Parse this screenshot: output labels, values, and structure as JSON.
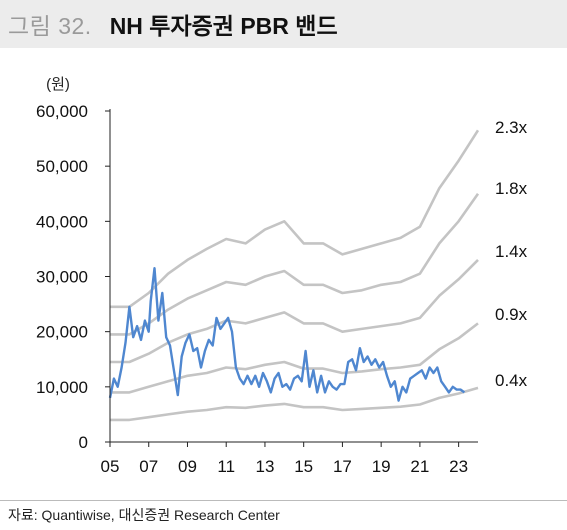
{
  "figure": {
    "label": "그림 32.",
    "title": "NH 투자증권 PBR 밴드"
  },
  "source": "자료: Quantiwise, 대신증권 Research Center",
  "colors": {
    "band": "#c4c4c4",
    "price": "#4f87d0",
    "axis": "#222222"
  },
  "chart_data": {
    "type": "line",
    "title": "NH 투자증권 PBR 밴드",
    "ylabel": "(원)",
    "xlabel": "",
    "ylim": [
      0,
      60000
    ],
    "xlim": [
      2005.0,
      2024.0
    ],
    "yticks": [
      0,
      10000,
      20000,
      30000,
      40000,
      50000,
      60000
    ],
    "ytick_labels": [
      "0",
      "10,000",
      "20,000",
      "30,000",
      "40,000",
      "50,000",
      "60,000"
    ],
    "xticks": [
      2005,
      2007,
      2009,
      2011,
      2013,
      2015,
      2017,
      2019,
      2021,
      2023
    ],
    "xtick_labels": [
      "05",
      "07",
      "09",
      "11",
      "13",
      "15",
      "17",
      "19",
      "21",
      "23"
    ],
    "band_labels": [
      "2.3x",
      "1.8x",
      "1.4x",
      "0.9x",
      "0.4x"
    ],
    "bands": [
      {
        "name": "2.3x",
        "x": [
          2005.0,
          2006.0,
          2007.0,
          2008.0,
          2009.0,
          2010.0,
          2011.0,
          2012.0,
          2013.0,
          2014.0,
          2015.0,
          2016.0,
          2017.0,
          2018.0,
          2019.0,
          2020.0,
          2021.0,
          2022.0,
          2023.0,
          2024.0
        ],
        "values": [
          24500,
          24500,
          27000,
          30500,
          33000,
          35000,
          36800,
          36000,
          38500,
          40000,
          36000,
          36000,
          34000,
          35000,
          36000,
          37000,
          39000,
          46000,
          51000,
          56500
        ]
      },
      {
        "name": "1.8x",
        "x": [
          2005.0,
          2006.0,
          2007.0,
          2008.0,
          2009.0,
          2010.0,
          2011.0,
          2012.0,
          2013.0,
          2014.0,
          2015.0,
          2016.0,
          2017.0,
          2018.0,
          2019.0,
          2020.0,
          2021.0,
          2022.0,
          2023.0,
          2024.0
        ],
        "values": [
          19500,
          19500,
          21500,
          24000,
          26000,
          27500,
          29000,
          28500,
          30000,
          31000,
          28500,
          28500,
          27000,
          27500,
          28500,
          29000,
          30500,
          36000,
          40000,
          45000
        ]
      },
      {
        "name": "1.4x",
        "x": [
          2005.0,
          2006.0,
          2007.0,
          2008.0,
          2009.0,
          2010.0,
          2011.0,
          2012.0,
          2013.0,
          2014.0,
          2015.0,
          2016.0,
          2017.0,
          2018.0,
          2019.0,
          2020.0,
          2021.0,
          2022.0,
          2023.0,
          2024.0
        ],
        "values": [
          14500,
          14500,
          16000,
          18000,
          19500,
          20500,
          22000,
          21500,
          22500,
          23500,
          21500,
          21500,
          20000,
          20500,
          21000,
          21500,
          22500,
          26500,
          29500,
          33000
        ]
      },
      {
        "name": "0.9x",
        "x": [
          2005.0,
          2006.0,
          2007.0,
          2008.0,
          2009.0,
          2010.0,
          2011.0,
          2012.0,
          2013.0,
          2014.0,
          2015.0,
          2016.0,
          2017.0,
          2018.0,
          2019.0,
          2020.0,
          2021.0,
          2022.0,
          2023.0,
          2024.0
        ],
        "values": [
          9000,
          9000,
          10000,
          11000,
          12000,
          12500,
          13500,
          13200,
          14000,
          14500,
          13300,
          13300,
          12500,
          12800,
          13200,
          13500,
          14000,
          16800,
          18800,
          21500
        ]
      },
      {
        "name": "0.4x",
        "x": [
          2005.0,
          2006.0,
          2007.0,
          2008.0,
          2009.0,
          2010.0,
          2011.0,
          2012.0,
          2013.0,
          2014.0,
          2015.0,
          2016.0,
          2017.0,
          2018.0,
          2019.0,
          2020.0,
          2021.0,
          2022.0,
          2023.0,
          2024.0
        ],
        "values": [
          4000,
          4000,
          4500,
          5000,
          5500,
          5800,
          6300,
          6200,
          6600,
          6900,
          6300,
          6300,
          5800,
          6000,
          6200,
          6400,
          6800,
          8000,
          8800,
          9800
        ]
      }
    ],
    "series": [
      {
        "x": [
          2005.0,
          2005.2,
          2005.4,
          2005.6,
          2005.8,
          2006.0,
          2006.2,
          2006.4,
          2006.6,
          2006.8,
          2007.0,
          2007.1,
          2007.3,
          2007.5,
          2007.7,
          2007.9,
          2008.1,
          2008.3,
          2008.5,
          2008.7,
          2008.9,
          2009.1,
          2009.3,
          2009.5,
          2009.7,
          2009.9,
          2010.1,
          2010.3,
          2010.5,
          2010.7,
          2010.9,
          2011.1,
          2011.3,
          2011.5,
          2011.7,
          2011.9,
          2012.1,
          2012.3,
          2012.5,
          2012.7,
          2012.9,
          2013.1,
          2013.3,
          2013.5,
          2013.7,
          2013.9,
          2014.1,
          2014.3,
          2014.5,
          2014.7,
          2014.9,
          2015.1,
          2015.3,
          2015.5,
          2015.7,
          2015.9,
          2016.1,
          2016.3,
          2016.5,
          2016.7,
          2016.9,
          2017.1,
          2017.3,
          2017.5,
          2017.7,
          2017.9,
          2018.1,
          2018.3,
          2018.5,
          2018.7,
          2018.9,
          2019.1,
          2019.3,
          2019.5,
          2019.7,
          2019.9,
          2020.1,
          2020.3,
          2020.5,
          2020.7,
          2020.9,
          2021.1,
          2021.3,
          2021.5,
          2021.7,
          2021.9,
          2022.1,
          2022.3,
          2022.5,
          2022.7,
          2022.9,
          2023.1,
          2023.3
        ],
        "values": [
          8000,
          11500,
          10000,
          13500,
          18000,
          24500,
          19000,
          21000,
          18500,
          22000,
          20000,
          25500,
          31500,
          22000,
          27000,
          19000,
          17500,
          13000,
          8500,
          15500,
          18000,
          19500,
          16500,
          17000,
          13500,
          16500,
          18500,
          17500,
          22500,
          20500,
          21500,
          22500,
          20000,
          13500,
          11500,
          10500,
          12000,
          10500,
          12000,
          10000,
          12500,
          11000,
          9000,
          11500,
          12500,
          10000,
          10500,
          9500,
          11500,
          12000,
          11000,
          16500,
          10000,
          13000,
          9000,
          12000,
          9000,
          11000,
          10000,
          9500,
          10500,
          10500,
          14500,
          15000,
          13000,
          17000,
          14500,
          15500,
          14000,
          15000,
          13500,
          14500,
          12000,
          10000,
          11000,
          7500,
          10000,
          9000,
          11500,
          12000,
          12500,
          13000,
          11500,
          13500,
          12500,
          13500,
          11000,
          10000,
          9000,
          10000,
          9500,
          9500,
          9000
        ]
      }
    ]
  }
}
